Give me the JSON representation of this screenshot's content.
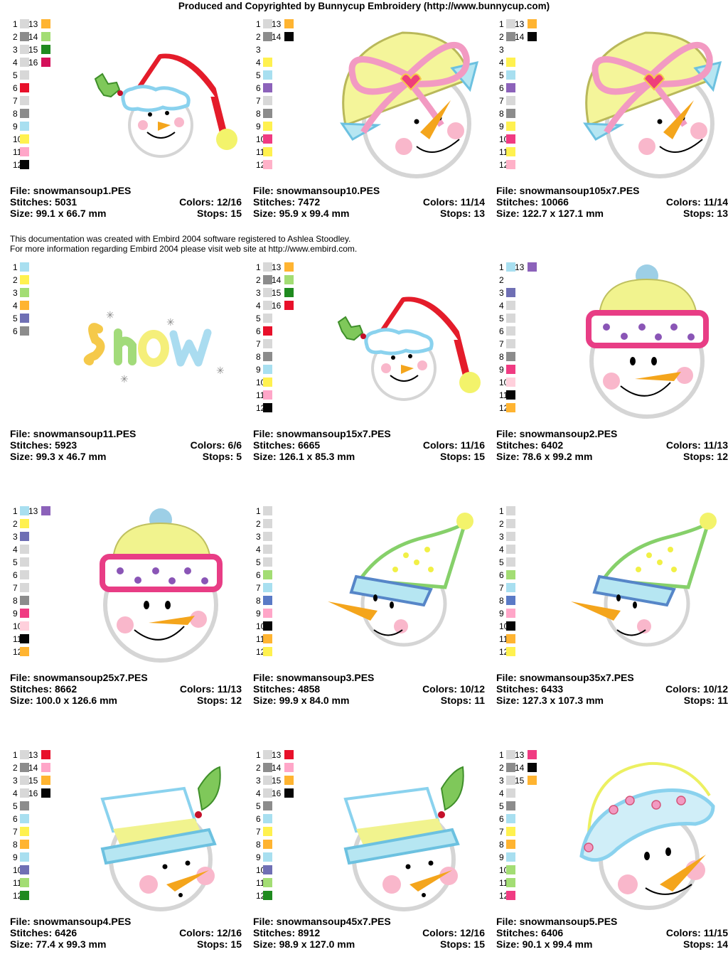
{
  "header": "Produced and Copyrighted by Bunnycup Embroidery (http://www.bunnycup.com)",
  "note": {
    "line1": "This documentation was created with Embird 2004 software registered to Ashlea Stoodley.",
    "line2": "For more information regarding Embird 2004 please visit web site at http://www.embird.com."
  },
  "labels": {
    "file": "File:",
    "stitches": "Stitches:",
    "size": "Size:",
    "colors": "Colors:",
    "stops": "Stops:"
  },
  "designs": [
    {
      "file": "snowmansoup1.PES",
      "stitches": "5031",
      "size": "99.1 x 66.7 mm",
      "colors": "12/16",
      "stops": "15",
      "art": "hat",
      "palette": [
        "#d8d8d8",
        "#8c8c8c",
        "#d8d8d8",
        "#d8d8d8",
        "#d8d8d8",
        "#e8102a",
        "#d8d8d8",
        "#8c8c8c",
        "#a8dff0",
        "#fff14f",
        "#ffa6c8",
        "#050505",
        "#ffb431",
        "#a3dd74",
        "#1f8a1f",
        "#d4105a"
      ]
    },
    {
      "file": "snowmansoup10.PES",
      "stitches": "7472",
      "size": "95.9 x 99.4 mm",
      "colors": "11/14",
      "stops": "13",
      "art": "bow",
      "palette": [
        "#d8d8d8",
        "#8c8c8c",
        "#ffffff",
        "#fff14f",
        "#a8dff0",
        "#8c62ba",
        "#d8d8d8",
        "#8c8c8c",
        "#fff14f",
        "#f03b82",
        "#fff14f",
        "#ffb1c8",
        "#ffb431",
        "#050505"
      ]
    },
    {
      "file": "snowmansoup105x7.PES",
      "stitches": "10066",
      "size": "122.7 x 127.1 mm",
      "colors": "11/14",
      "stops": "13",
      "art": "bow",
      "palette": [
        "#d8d8d8",
        "#8c8c8c",
        "#ffffff",
        "#fff14f",
        "#a8dff0",
        "#8c62ba",
        "#d8d8d8",
        "#8c8c8c",
        "#fff14f",
        "#f03b82",
        "#fff14f",
        "#ffb1c8",
        "#ffb431",
        "#050505"
      ]
    },
    {
      "file": "snowmansoup11.PES",
      "stitches": "5923",
      "size": "99.3 x 46.7 mm",
      "colors": "6/6",
      "stops": "5",
      "art": "snow",
      "palette": [
        "#a8dff0",
        "#fff14f",
        "#a3dd74",
        "#ffb431",
        "#6f6fb4",
        "#8c8c8c"
      ]
    },
    {
      "file": "snowmansoup15x7.PES",
      "stitches": "6665",
      "size": "126.1 x 85.3 mm",
      "colors": "11/16",
      "stops": "15",
      "art": "hat",
      "palette": [
        "#d8d8d8",
        "#8c8c8c",
        "#d8d8d8",
        "#d8d8d8",
        "#d8d8d8",
        "#e8102a",
        "#d8d8d8",
        "#8c8c8c",
        "#a8dff0",
        "#fff14f",
        "#ffa6c8",
        "#050505",
        "#ffb431",
        "#a3dd74",
        "#1f8a1f",
        "#e8102a"
      ]
    },
    {
      "file": "snowmansoup2.PES",
      "stitches": "6402",
      "size": "78.6 x 99.2 mm",
      "colors": "11/13",
      "stops": "12",
      "art": "beanie",
      "palette": [
        "#a8dff0",
        "#ffffff",
        "#6f6fb4",
        "#d8d8d8",
        "#d8d8d8",
        "#d8d8d8",
        "#d8d8d8",
        "#8c8c8c",
        "#f03b82",
        "#ffd0dc",
        "#050505",
        "#ffb431",
        "#8c62ba"
      ]
    },
    {
      "file": "snowmansoup25x7.PES",
      "stitches": "8662",
      "size": "100.0 x 126.6 mm",
      "colors": "11/13",
      "stops": "12",
      "art": "beanie",
      "palette": [
        "#a8dff0",
        "#fff14f",
        "#6f6fb4",
        "#d8d8d8",
        "#d8d8d8",
        "#d8d8d8",
        "#d8d8d8",
        "#8c8c8c",
        "#f03b82",
        "#ffd0dc",
        "#050505",
        "#ffb431",
        "#8c62ba"
      ]
    },
    {
      "file": "snowmansoup3.PES",
      "stitches": "4858",
      "size": "99.9 x 84.0 mm",
      "colors": "10/12",
      "stops": "11",
      "art": "nightcap",
      "palette": [
        "#d8d8d8",
        "#d8d8d8",
        "#d8d8d8",
        "#d8d8d8",
        "#d8d8d8",
        "#a3dd74",
        "#a8dff0",
        "#5a7ac6",
        "#ffa6c8",
        "#050505",
        "#ffb431",
        "#fff14f"
      ]
    },
    {
      "file": "snowmansoup35x7.PES",
      "stitches": "6433",
      "size": "127.3 x 107.3 mm",
      "colors": "10/12",
      "stops": "11",
      "art": "nightcap",
      "palette": [
        "#d8d8d8",
        "#d8d8d8",
        "#d8d8d8",
        "#d8d8d8",
        "#d8d8d8",
        "#a3dd74",
        "#a8dff0",
        "#5a7ac6",
        "#ffa6c8",
        "#050505",
        "#ffb431",
        "#fff14f"
      ]
    },
    {
      "file": "snowmansoup4.PES",
      "stitches": "6426",
      "size": "77.4 x 99.3 mm",
      "colors": "12/16",
      "stops": "15",
      "art": "tophat",
      "palette": [
        "#d8d8d8",
        "#8c8c8c",
        "#d8d8d8",
        "#d8d8d8",
        "#8c8c8c",
        "#a8dff0",
        "#fff14f",
        "#ffb431",
        "#a8dff0",
        "#6f6fb4",
        "#a3dd74",
        "#1f8a1f",
        "#e8102a",
        "#ffa6c8",
        "#ffb431",
        "#050505"
      ]
    },
    {
      "file": "snowmansoup45x7.PES",
      "stitches": "8912",
      "size": "98.9 x 127.0 mm",
      "colors": "12/16",
      "stops": "15",
      "art": "tophat",
      "palette": [
        "#d8d8d8",
        "#8c8c8c",
        "#d8d8d8",
        "#d8d8d8",
        "#8c8c8c",
        "#a8dff0",
        "#fff14f",
        "#ffb431",
        "#a8dff0",
        "#6f6fb4",
        "#a3dd74",
        "#1f8a1f",
        "#e8102a",
        "#ffa6c8",
        "#ffb431",
        "#050505"
      ]
    },
    {
      "file": "snowmansoup5.PES",
      "stitches": "6406",
      "size": "90.1 x 99.4 mm",
      "colors": "11/15",
      "stops": "14",
      "art": "cloche",
      "palette": [
        "#d8d8d8",
        "#8c8c8c",
        "#d8d8d8",
        "#d8d8d8",
        "#8c8c8c",
        "#a8dff0",
        "#fff14f",
        "#ffb431",
        "#a8dff0",
        "#a3dd74",
        "#a3dd74",
        "#f03b82",
        "#f03b82",
        "#050505",
        "#ffb431"
      ]
    }
  ]
}
